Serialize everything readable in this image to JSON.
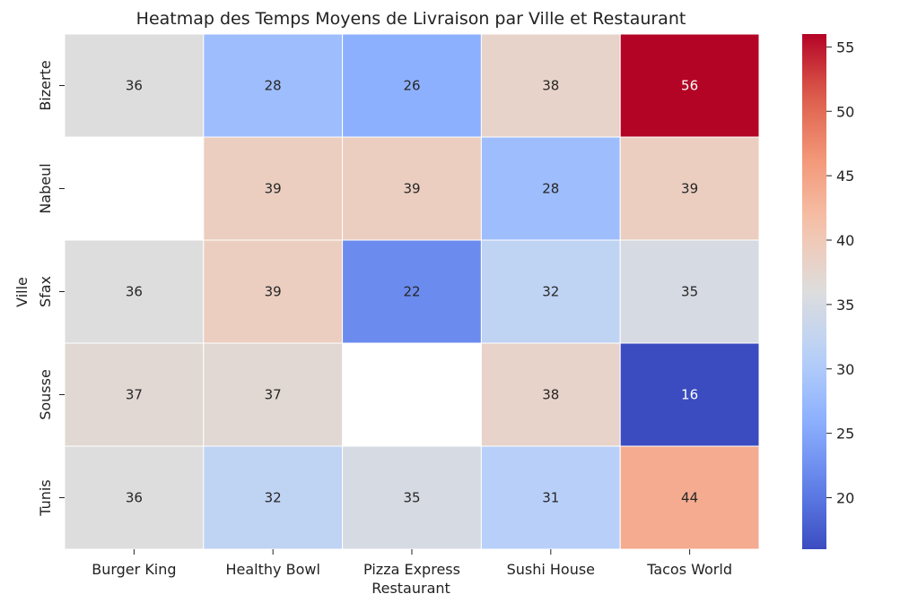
{
  "chart_data": {
    "type": "heatmap",
    "title": "Heatmap des Temps Moyens de Livraison par Ville et Restaurant",
    "xlabel": "Restaurant",
    "ylabel": "Ville",
    "x_categories": [
      "Burger King",
      "Healthy Bowl",
      "Pizza Express",
      "Sushi House",
      "Tacos World"
    ],
    "y_categories": [
      "Bizerte",
      "Nabeul",
      "Sfax",
      "Sousse",
      "Tunis"
    ],
    "values": [
      [
        36,
        28,
        26,
        38,
        56
      ],
      [
        null,
        39,
        39,
        28,
        39
      ],
      [
        36,
        39,
        22,
        32,
        35
      ],
      [
        37,
        37,
        null,
        38,
        16
      ],
      [
        36,
        32,
        35,
        31,
        44
      ]
    ],
    "colormap": "coolwarm",
    "vmin": 16,
    "vmax": 56,
    "colorbar_ticks": [
      20,
      25,
      30,
      35,
      40,
      45,
      50,
      55
    ],
    "annotated": true
  }
}
